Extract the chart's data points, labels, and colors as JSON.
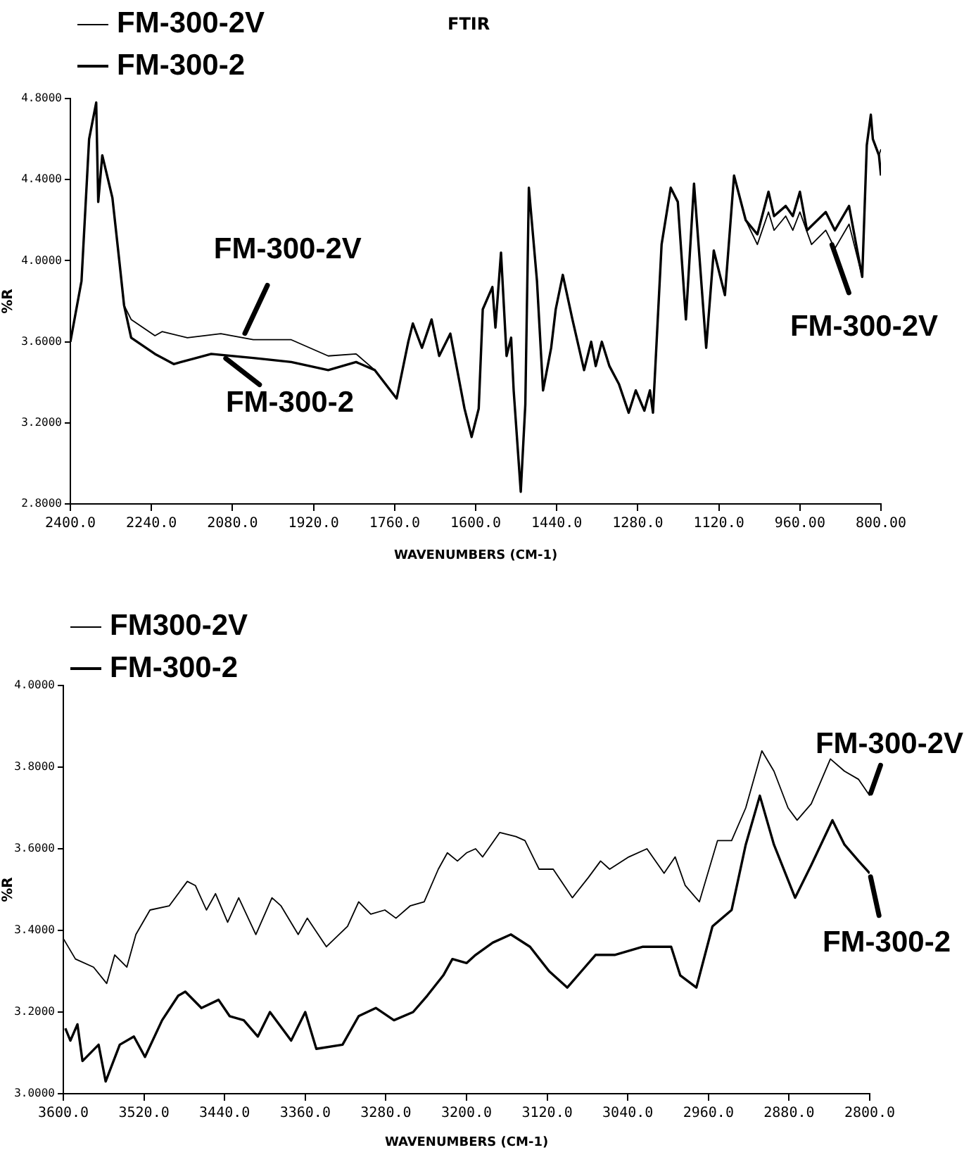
{
  "chart_data": [
    {
      "type": "line",
      "title": "FTIR",
      "xlabel": "WAVENUMBERS (CM-1)",
      "ylabel": "%R",
      "grid": false,
      "marker": "none",
      "line_style": "solid",
      "legend": "top left",
      "xlim": [
        2400,
        800
      ],
      "xticks": [
        {
          "value": 2400,
          "label": "2400.0"
        },
        {
          "value": 2240,
          "label": "2240.0"
        },
        {
          "value": 2080,
          "label": "2080.0"
        },
        {
          "value": 1920,
          "label": "1920.0"
        },
        {
          "value": 1760,
          "label": "1760.0"
        },
        {
          "value": 1600,
          "label": "1600.0"
        },
        {
          "value": 1440,
          "label": "1440.0"
        },
        {
          "value": 1280,
          "label": "1280.0"
        },
        {
          "value": 1120,
          "label": "1120.0"
        },
        {
          "value": 960,
          "label": "960.00"
        },
        {
          "value": 800,
          "label": "800.00"
        }
      ],
      "ylim": [
        2.8,
        4.8
      ],
      "yticks": [
        {
          "value": 2.8,
          "label": "2.8000"
        },
        {
          "value": 3.2,
          "label": "3.2000"
        },
        {
          "value": 3.6,
          "label": "3.6000"
        },
        {
          "value": 4.0,
          "label": "4.0000"
        },
        {
          "value": 4.4,
          "label": "4.4000"
        },
        {
          "value": 4.8,
          "label": "4.8000"
        }
      ],
      "series": [
        {
          "name": "FM-300-2V",
          "color": "#000000",
          "x": [
            2400,
            2378,
            2363,
            2349,
            2345,
            2337,
            2317,
            2303,
            2294,
            2280,
            2233,
            2219,
            2169,
            2103,
            2039,
            1964,
            1891,
            1836,
            1799,
            1756,
            1733,
            1724,
            1706,
            1687,
            1672,
            1650,
            1622,
            1608,
            1594,
            1586,
            1567,
            1561,
            1550,
            1539,
            1530,
            1525,
            1511,
            1502,
            1495,
            1479,
            1467,
            1451,
            1442,
            1428,
            1409,
            1386,
            1372,
            1363,
            1351,
            1336,
            1317,
            1298,
            1284,
            1267,
            1256,
            1250,
            1233,
            1215,
            1201,
            1185,
            1169,
            1145,
            1130,
            1108,
            1090,
            1067,
            1044,
            1022,
            1011,
            988,
            974,
            960,
            937,
            909,
            891,
            863,
            849,
            837,
            828,
            820,
            816,
            804,
            800
          ],
          "values": [
            3.6,
            3.9,
            4.6,
            4.78,
            4.29,
            4.52,
            4.31,
            3.99,
            3.78,
            3.71,
            3.63,
            3.65,
            3.62,
            3.64,
            3.61,
            3.61,
            3.53,
            3.54,
            3.46,
            3.32,
            3.6,
            3.69,
            3.57,
            3.71,
            3.53,
            3.64,
            3.27,
            3.13,
            3.27,
            3.76,
            3.87,
            3.67,
            4.04,
            3.53,
            3.62,
            3.36,
            2.86,
            3.29,
            4.36,
            3.9,
            3.36,
            3.57,
            3.76,
            3.93,
            3.71,
            3.46,
            3.6,
            3.48,
            3.6,
            3.48,
            3.39,
            3.25,
            3.36,
            3.26,
            3.36,
            3.25,
            4.08,
            4.36,
            4.29,
            3.71,
            4.38,
            3.57,
            4.05,
            3.83,
            4.42,
            4.2,
            4.08,
            4.24,
            4.15,
            4.22,
            4.15,
            4.24,
            4.08,
            4.15,
            4.06,
            4.18,
            4.04,
            3.92,
            4.57,
            4.72,
            4.6,
            4.52,
            4.55
          ]
        },
        {
          "name": "FM-300-2",
          "color": "#000000",
          "x": [
            2400,
            2378,
            2363,
            2349,
            2345,
            2337,
            2317,
            2303,
            2294,
            2280,
            2233,
            2196,
            2122,
            2039,
            1964,
            1891,
            1836,
            1799,
            1756,
            1733,
            1724,
            1706,
            1687,
            1672,
            1650,
            1622,
            1608,
            1594,
            1586,
            1567,
            1561,
            1550,
            1539,
            1530,
            1525,
            1511,
            1502,
            1495,
            1479,
            1467,
            1451,
            1442,
            1428,
            1409,
            1386,
            1372,
            1363,
            1351,
            1336,
            1317,
            1298,
            1284,
            1267,
            1256,
            1250,
            1233,
            1215,
            1201,
            1185,
            1169,
            1145,
            1130,
            1108,
            1090,
            1067,
            1044,
            1022,
            1011,
            988,
            974,
            960,
            946,
            909,
            891,
            863,
            849,
            837,
            828,
            820,
            816,
            804,
            800
          ],
          "values": [
            3.6,
            3.9,
            4.6,
            4.78,
            4.29,
            4.52,
            4.31,
            3.99,
            3.78,
            3.62,
            3.54,
            3.49,
            3.54,
            3.52,
            3.5,
            3.46,
            3.5,
            3.46,
            3.32,
            3.6,
            3.69,
            3.57,
            3.71,
            3.53,
            3.64,
            3.27,
            3.13,
            3.27,
            3.76,
            3.87,
            3.67,
            4.04,
            3.53,
            3.62,
            3.36,
            2.86,
            3.29,
            4.36,
            3.9,
            3.36,
            3.57,
            3.76,
            3.93,
            3.71,
            3.46,
            3.6,
            3.48,
            3.6,
            3.48,
            3.39,
            3.25,
            3.36,
            3.26,
            3.36,
            3.25,
            4.08,
            4.36,
            4.29,
            3.71,
            4.38,
            3.57,
            4.05,
            3.83,
            4.42,
            4.2,
            4.13,
            4.34,
            4.22,
            4.27,
            4.22,
            4.34,
            4.15,
            4.24,
            4.15,
            4.27,
            4.08,
            3.92,
            4.57,
            4.72,
            4.6,
            4.52,
            4.42
          ]
        }
      ],
      "annotations": [
        {
          "text": "FM-300-2V",
          "x": 2060,
          "y": 3.62
        },
        {
          "text": "FM-300-2",
          "x": 2100,
          "y": 3.53
        },
        {
          "text": "FM-300-2V",
          "x": 900,
          "y": 4.1
        }
      ]
    },
    {
      "type": "line",
      "xlabel": "WAVENUMBERS (CM-1)",
      "ylabel": "%R",
      "grid": false,
      "marker": "none",
      "line_style": "solid",
      "legend": "top left",
      "xlim": [
        3600,
        2800
      ],
      "xticks": [
        {
          "value": 3600,
          "label": "3600.0"
        },
        {
          "value": 3520,
          "label": "3520.0"
        },
        {
          "value": 3440,
          "label": "3440.0"
        },
        {
          "value": 3360,
          "label": "3360.0"
        },
        {
          "value": 3280,
          "label": "3280.0"
        },
        {
          "value": 3200,
          "label": "3200.0"
        },
        {
          "value": 3120,
          "label": "3120.0"
        },
        {
          "value": 3040,
          "label": "3040.0"
        },
        {
          "value": 2960,
          "label": "2960.0"
        },
        {
          "value": 2880,
          "label": "2880.0"
        },
        {
          "value": 2800,
          "label": "2800.0"
        }
      ],
      "ylim": [
        3.0,
        4.0
      ],
      "yticks": [
        {
          "value": 3.0,
          "label": "3.0000"
        },
        {
          "value": 3.2,
          "label": "3.2000"
        },
        {
          "value": 3.4,
          "label": "3.4000"
        },
        {
          "value": 3.6,
          "label": "3.6000"
        },
        {
          "value": 3.8,
          "label": "3.8000"
        },
        {
          "value": 4.0,
          "label": "4.0000"
        }
      ],
      "series": [
        {
          "name": "FM300-2V",
          "color": "#000000",
          "x": [
            3600,
            3588,
            3570,
            3557,
            3549,
            3537,
            3528,
            3514,
            3495,
            3477,
            3469,
            3458,
            3449,
            3437,
            3426,
            3409,
            3393,
            3384,
            3367,
            3358,
            3339,
            3318,
            3307,
            3295,
            3281,
            3270,
            3256,
            3242,
            3228,
            3219,
            3209,
            3200,
            3191,
            3184,
            3167,
            3151,
            3142,
            3128,
            3114,
            3095,
            3079,
            3067,
            3058,
            3039,
            3021,
            3004,
            2993,
            2983,
            2969,
            2951,
            2937,
            2923,
            2907,
            2895,
            2881,
            2872,
            2858,
            2839,
            2825,
            2811,
            2800
          ],
          "values": [
            3.38,
            3.33,
            3.31,
            3.27,
            3.34,
            3.31,
            3.39,
            3.45,
            3.46,
            3.52,
            3.51,
            3.45,
            3.49,
            3.42,
            3.48,
            3.39,
            3.48,
            3.46,
            3.39,
            3.43,
            3.36,
            3.41,
            3.47,
            3.44,
            3.45,
            3.43,
            3.46,
            3.47,
            3.55,
            3.59,
            3.57,
            3.59,
            3.6,
            3.58,
            3.64,
            3.63,
            3.62,
            3.55,
            3.55,
            3.48,
            3.53,
            3.57,
            3.55,
            3.58,
            3.6,
            3.54,
            3.58,
            3.51,
            3.47,
            3.62,
            3.62,
            3.7,
            3.84,
            3.79,
            3.7,
            3.67,
            3.71,
            3.82,
            3.79,
            3.77,
            3.73
          ]
        },
        {
          "name": "FM-300-2",
          "color": "#000000",
          "x": [
            3598,
            3593,
            3586,
            3581,
            3565,
            3558,
            3544,
            3530,
            3519,
            3502,
            3486,
            3479,
            3463,
            3446,
            3435,
            3421,
            3407,
            3395,
            3374,
            3360,
            3349,
            3323,
            3307,
            3290,
            3272,
            3253,
            3239,
            3223,
            3214,
            3200,
            3191,
            3174,
            3156,
            3137,
            3118,
            3100,
            3086,
            3072,
            3053,
            3025,
            2997,
            2988,
            2972,
            2956,
            2937,
            2923,
            2909,
            2895,
            2874,
            2858,
            2837,
            2825,
            2811,
            2800
          ],
          "values": [
            3.16,
            3.13,
            3.17,
            3.08,
            3.12,
            3.03,
            3.12,
            3.14,
            3.09,
            3.18,
            3.24,
            3.25,
            3.21,
            3.23,
            3.19,
            3.18,
            3.14,
            3.2,
            3.13,
            3.2,
            3.11,
            3.12,
            3.19,
            3.21,
            3.18,
            3.2,
            3.24,
            3.29,
            3.33,
            3.32,
            3.34,
            3.37,
            3.39,
            3.36,
            3.3,
            3.26,
            3.3,
            3.34,
            3.34,
            3.36,
            3.36,
            3.29,
            3.26,
            3.41,
            3.45,
            3.61,
            3.73,
            3.61,
            3.48,
            3.56,
            3.67,
            3.61,
            3.57,
            3.54
          ]
        }
      ],
      "annotations": [
        {
          "text": "FM-300-2V",
          "x": 2800,
          "y": 3.73
        },
        {
          "text": "FM-300-2",
          "x": 2800,
          "y": 3.54
        }
      ]
    }
  ]
}
